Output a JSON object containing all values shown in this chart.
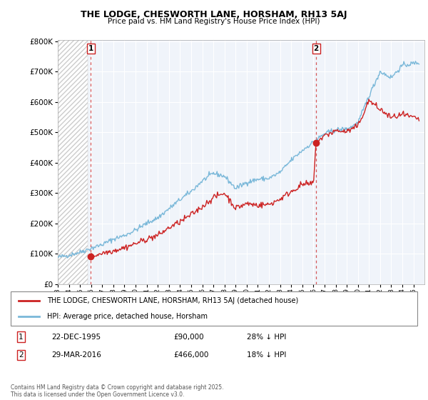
{
  "title": "THE LODGE, CHESWORTH LANE, HORSHAM, RH13 5AJ",
  "subtitle": "Price paid vs. HM Land Registry's House Price Index (HPI)",
  "hpi_color": "#7ab8d9",
  "price_color": "#cc2222",
  "marker_color": "#cc2222",
  "purchase1_year": 1995.97,
  "purchase1_price": 90000,
  "purchase2_year": 2016.24,
  "purchase2_price": 466000,
  "xmin": 1993,
  "xmax": 2026,
  "ymin": 0,
  "ymax": 800000,
  "yticks": [
    0,
    100000,
    200000,
    300000,
    400000,
    500000,
    600000,
    700000,
    800000
  ],
  "legend_line1": "THE LODGE, CHESWORTH LANE, HORSHAM, RH13 5AJ (detached house)",
  "legend_line2": "HPI: Average price, detached house, Horsham",
  "footnote": "Contains HM Land Registry data © Crown copyright and database right 2025.\nThis data is licensed under the Open Government Licence v3.0.",
  "table_rows": [
    {
      "num": "1",
      "date": "22-DEC-1995",
      "price": "£90,000",
      "pct": "28% ↓ HPI"
    },
    {
      "num": "2",
      "date": "29-MAR-2016",
      "price": "£466,000",
      "pct": "18% ↓ HPI"
    }
  ]
}
